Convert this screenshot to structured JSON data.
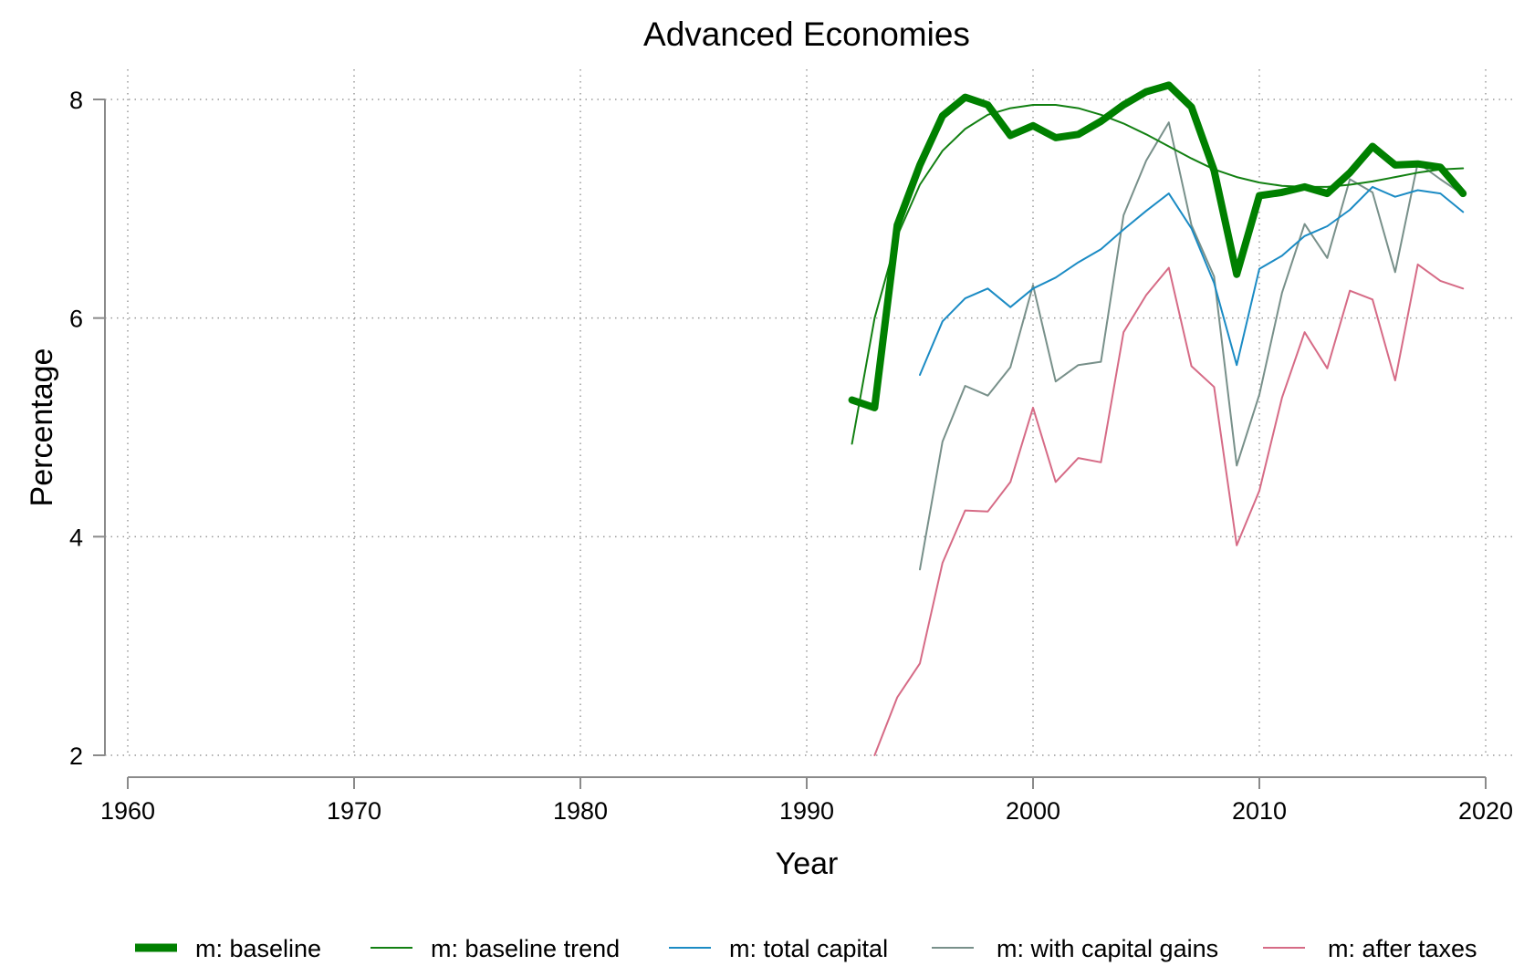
{
  "chart_data": {
    "type": "line",
    "title": "Advanced Economies",
    "xlabel": "Year",
    "ylabel": "Percentage",
    "xlim": [
      1960,
      2020
    ],
    "ylim": [
      2,
      8
    ],
    "x_ticks": [
      "1960",
      "1970",
      "1980",
      "1990",
      "2000",
      "2010",
      "2020"
    ],
    "y_ticks": [
      "2",
      "4",
      "6",
      "8"
    ],
    "grid": true,
    "legend_position": "bottom",
    "series": [
      {
        "name": "m: baseline",
        "color": "#008000",
        "width": "thick",
        "x": [
          1992,
          1993,
          1994,
          1995,
          1996,
          1997,
          1998,
          1999,
          2000,
          2001,
          2002,
          2003,
          2004,
          2005,
          2006,
          2007,
          2008,
          2009,
          2010,
          2011,
          2012,
          2013,
          2014,
          2015,
          2016,
          2017,
          2018,
          2019
        ],
        "values": [
          5.25,
          5.18,
          6.85,
          7.4,
          7.85,
          8.02,
          7.95,
          7.67,
          7.76,
          7.65,
          7.68,
          7.8,
          7.95,
          8.07,
          8.13,
          7.93,
          7.35,
          6.4,
          7.12,
          7.15,
          7.2,
          7.14,
          7.33,
          7.57,
          7.4,
          7.41,
          7.38,
          7.14
        ]
      },
      {
        "name": "m: baseline trend",
        "color": "#128012",
        "width": "thin",
        "x": [
          1992,
          1993,
          1994,
          1995,
          1996,
          1997,
          1998,
          1999,
          2000,
          2001,
          2002,
          2003,
          2004,
          2005,
          2006,
          2007,
          2008,
          2009,
          2010,
          2011,
          2012,
          2013,
          2014,
          2015,
          2016,
          2017,
          2018,
          2019
        ],
        "values": [
          4.85,
          6.0,
          6.75,
          7.22,
          7.53,
          7.73,
          7.86,
          7.92,
          7.95,
          7.95,
          7.92,
          7.86,
          7.78,
          7.68,
          7.57,
          7.46,
          7.36,
          7.29,
          7.24,
          7.21,
          7.2,
          7.2,
          7.22,
          7.25,
          7.29,
          7.33,
          7.36,
          7.37
        ]
      },
      {
        "name": "m: total capital",
        "color": "#1b8bc4",
        "width": "thin",
        "x": [
          1995,
          1996,
          1997,
          1998,
          1999,
          2000,
          2001,
          2002,
          2003,
          2004,
          2005,
          2006,
          2007,
          2008,
          2009,
          2010,
          2011,
          2012,
          2013,
          2014,
          2015,
          2016,
          2017,
          2018,
          2019
        ],
        "values": [
          5.48,
          5.97,
          6.18,
          6.27,
          6.1,
          6.27,
          6.37,
          6.51,
          6.63,
          6.81,
          6.98,
          7.14,
          6.82,
          6.32,
          5.57,
          6.45,
          6.57,
          6.75,
          6.84,
          6.99,
          7.2,
          7.11,
          7.17,
          7.14,
          6.97
        ]
      },
      {
        "name": "m: with capital gains",
        "color": "#78908a",
        "width": "thin",
        "x": [
          1995,
          1996,
          1997,
          1998,
          1999,
          2000,
          2001,
          2002,
          2003,
          2004,
          2005,
          2006,
          2007,
          2008,
          2009,
          2010,
          2011,
          2012,
          2013,
          2014,
          2015,
          2016,
          2017,
          2018,
          2019
        ],
        "values": [
          3.7,
          4.87,
          5.38,
          5.29,
          5.55,
          6.3,
          5.42,
          5.57,
          5.6,
          6.94,
          7.44,
          7.79,
          6.85,
          6.38,
          4.65,
          5.3,
          6.23,
          6.86,
          6.55,
          7.27,
          7.15,
          6.42,
          7.42,
          7.27,
          7.13
        ]
      },
      {
        "name": "m: after taxes",
        "color": "#d66b86",
        "width": "thin",
        "x": [
          1993,
          1994,
          1995,
          1996,
          1997,
          1998,
          1999,
          2000,
          2001,
          2002,
          2003,
          2004,
          2005,
          2006,
          2007,
          2008,
          2009,
          2010,
          2011,
          2012,
          2013,
          2014,
          2015,
          2016,
          2017,
          2018,
          2019
        ],
        "values": [
          2.0,
          2.53,
          2.84,
          3.76,
          4.24,
          4.23,
          4.5,
          5.18,
          4.5,
          4.72,
          4.68,
          5.87,
          6.21,
          6.46,
          5.56,
          5.37,
          3.92,
          4.42,
          5.27,
          5.87,
          5.54,
          6.25,
          6.17,
          5.43,
          6.49,
          6.34,
          6.27
        ]
      }
    ]
  }
}
